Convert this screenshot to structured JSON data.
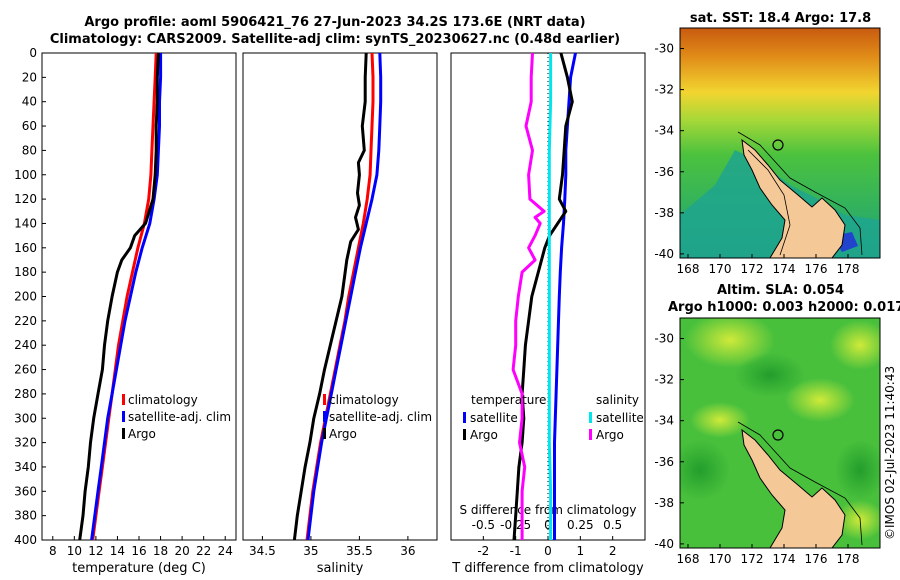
{
  "header": {
    "title_line1": "Argo profile: aoml 5906421_76 27-Jun-2023 34.2S 173.6E (NRT data)",
    "title_line2": "Climatology: CARS2009. Satellite-adj clim: synTS_20230627.nc (0.48d earlier)"
  },
  "maps": {
    "sst_title": "sat. SST: 18.4 Argo: 17.8",
    "sla_title_line1": "Altim. SLA: 0.054",
    "sla_title_line2": "Argo h1000: 0.003 h2000: 0.017",
    "lon_ticks": [
      "168",
      "170",
      "172",
      "174",
      "176",
      "178"
    ],
    "lat_ticks": [
      "-30",
      "-32",
      "-34",
      "-36",
      "-38",
      "-40"
    ],
    "argo_position": {
      "lon": 173.6,
      "lat": -34.2
    }
  },
  "credit": "©IMOS 02-Jul-2023 11:40:43",
  "colors": {
    "climatology": "#ff0000",
    "satellite": "#0000ff",
    "argo": "#000000",
    "s_satellite": "#00e5ee",
    "s_argo": "#ff00ff",
    "land": "#f5c898"
  },
  "chart_data": [
    {
      "type": "line",
      "title": "",
      "xlabel": "temperature (deg C)",
      "ylabel": "",
      "xlim": [
        7,
        25
      ],
      "ylim": [
        400,
        0
      ],
      "xticks": [
        8,
        10,
        12,
        14,
        16,
        18,
        20,
        22,
        24
      ],
      "yticks": [
        0,
        20,
        40,
        60,
        80,
        100,
        120,
        140,
        160,
        180,
        200,
        220,
        240,
        260,
        280,
        300,
        320,
        340,
        360,
        380,
        400
      ],
      "legend": [
        "climatology",
        "satellite-adj. clim",
        "Argo"
      ],
      "series": [
        {
          "name": "climatology",
          "color": "#ff0000",
          "depth": [
            0,
            20,
            40,
            60,
            80,
            100,
            120,
            140,
            160,
            180,
            200,
            220,
            240,
            260,
            280,
            300,
            320,
            340,
            360,
            380,
            400
          ],
          "values": [
            17.6,
            17.5,
            17.4,
            17.3,
            17.2,
            17.1,
            16.9,
            16.5,
            15.9,
            15.4,
            14.9,
            14.5,
            14.1,
            13.8,
            13.5,
            13.2,
            12.9,
            12.6,
            12.3,
            12.0,
            11.7
          ]
        },
        {
          "name": "satellite-adj. clim",
          "color": "#0000ff",
          "depth": [
            0,
            20,
            40,
            60,
            80,
            100,
            120,
            140,
            160,
            180,
            200,
            220,
            240,
            260,
            280,
            300,
            320,
            340,
            360,
            380,
            400
          ],
          "values": [
            18.0,
            18.0,
            17.9,
            17.9,
            17.8,
            17.7,
            17.4,
            17.0,
            16.3,
            15.7,
            15.2,
            14.7,
            14.3,
            13.9,
            13.5,
            13.1,
            12.8,
            12.5,
            12.2,
            11.9,
            11.6
          ]
        },
        {
          "name": "Argo",
          "color": "#000000",
          "depth": [
            0,
            20,
            40,
            60,
            80,
            100,
            120,
            140,
            150,
            160,
            170,
            180,
            200,
            220,
            240,
            260,
            280,
            300,
            320,
            340,
            360,
            380,
            400
          ],
          "values": [
            17.8,
            17.7,
            17.7,
            17.6,
            17.6,
            17.5,
            17.3,
            16.6,
            15.6,
            15.2,
            14.4,
            14.0,
            13.5,
            13.1,
            12.8,
            12.6,
            12.2,
            11.8,
            11.5,
            11.3,
            11.0,
            10.8,
            10.5
          ]
        }
      ]
    },
    {
      "type": "line",
      "title": "",
      "xlabel": "salinity",
      "ylabel": "",
      "xlim": [
        34.3,
        36.3
      ],
      "ylim": [
        400,
        0
      ],
      "xticks": [
        34.5,
        35,
        35.5,
        36
      ],
      "xticklabels": [
        "34.5",
        "35",
        "35.5",
        "36"
      ],
      "legend": [
        "climatology",
        "satellite-adj. clim",
        "Argo"
      ],
      "series": [
        {
          "name": "climatology",
          "color": "#ff0000",
          "depth": [
            0,
            20,
            40,
            60,
            80,
            100,
            120,
            140,
            160,
            180,
            200,
            220,
            240,
            260,
            280,
            300,
            320,
            340,
            360,
            380,
            400
          ],
          "values": [
            35.63,
            35.64,
            35.64,
            35.63,
            35.62,
            35.61,
            35.58,
            35.54,
            35.49,
            35.44,
            35.39,
            35.35,
            35.3,
            35.25,
            35.2,
            35.15,
            35.1,
            35.06,
            35.02,
            34.99,
            34.96
          ]
        },
        {
          "name": "satellite-adj. clim",
          "color": "#0000ff",
          "depth": [
            0,
            20,
            40,
            60,
            80,
            100,
            120,
            140,
            160,
            180,
            200,
            220,
            240,
            260,
            280,
            300,
            320,
            340,
            360,
            380,
            400
          ],
          "values": [
            35.71,
            35.72,
            35.72,
            35.71,
            35.7,
            35.68,
            35.63,
            35.57,
            35.51,
            35.46,
            35.41,
            35.36,
            35.31,
            35.26,
            35.21,
            35.16,
            35.11,
            35.07,
            35.03,
            35.0,
            34.97
          ]
        },
        {
          "name": "Argo",
          "color": "#000000",
          "depth": [
            0,
            20,
            40,
            60,
            80,
            90,
            100,
            115,
            125,
            135,
            145,
            155,
            170,
            200,
            220,
            240,
            260,
            280,
            300,
            320,
            340,
            360,
            380,
            400
          ],
          "values": [
            35.57,
            35.56,
            35.56,
            35.53,
            35.55,
            35.49,
            35.5,
            35.48,
            35.5,
            35.46,
            35.49,
            35.41,
            35.37,
            35.32,
            35.26,
            35.2,
            35.14,
            35.09,
            35.03,
            34.99,
            34.94,
            34.9,
            34.86,
            34.83
          ]
        }
      ]
    },
    {
      "type": "line",
      "title": "",
      "xlabel": "T difference from climatology",
      "ylabel": "",
      "xlim": [
        -3,
        3
      ],
      "ylim": [
        400,
        0
      ],
      "xticks": [
        -2,
        -1,
        0,
        1,
        2
      ],
      "secondary_axis": {
        "label": "S difference from climatology",
        "xlim": [
          -0.75,
          0.75
        ],
        "ticks": [
          -0.5,
          -0.25,
          0,
          0.25,
          0.5
        ],
        "ticklabels": [
          "-0.5",
          "-0.25",
          "0",
          "0.25",
          "0.5"
        ]
      },
      "legend_temperature": {
        "title": "temperature",
        "items": [
          "satellite",
          "Argo"
        ]
      },
      "legend_salinity": {
        "title": "salinity",
        "items": [
          "satellite",
          "Argo"
        ]
      },
      "series": [
        {
          "name": "T satellite",
          "axis": "T",
          "color": "#0000ff",
          "depth": [
            0,
            20,
            40,
            60,
            80,
            100,
            120,
            140,
            160,
            180,
            200,
            240,
            280,
            320,
            360,
            400
          ],
          "values": [
            0.85,
            0.7,
            0.65,
            0.6,
            0.55,
            0.55,
            0.52,
            0.48,
            0.42,
            0.38,
            0.35,
            0.3,
            0.25,
            0.2,
            0.2,
            0.2
          ]
        },
        {
          "name": "T Argo",
          "axis": "T",
          "color": "#000000",
          "depth": [
            0,
            20,
            40,
            60,
            80,
            100,
            120,
            130,
            140,
            150,
            160,
            180,
            200,
            220,
            240,
            260,
            280,
            300,
            320,
            340,
            360,
            380,
            400
          ],
          "values": [
            0.4,
            0.6,
            0.75,
            0.55,
            0.5,
            0.45,
            0.35,
            0.55,
            0.3,
            0.05,
            -0.1,
            -0.3,
            -0.5,
            -0.6,
            -0.7,
            -0.75,
            -0.8,
            -0.75,
            -0.8,
            -0.9,
            -0.95,
            -1.0,
            -1.05
          ]
        },
        {
          "name": "S satellite",
          "axis": "S",
          "color": "#00e5ee",
          "depth": [
            0,
            40,
            80,
            120,
            160,
            200,
            240,
            280,
            320,
            360,
            400
          ],
          "values": [
            0.02,
            0.02,
            0.01,
            0.01,
            0.01,
            0.01,
            0.01,
            0.01,
            0.01,
            0.02,
            0.02
          ]
        },
        {
          "name": "S Argo",
          "axis": "S",
          "color": "#ff00ff",
          "depth": [
            0,
            20,
            40,
            60,
            80,
            100,
            120,
            130,
            135,
            140,
            150,
            160,
            170,
            180,
            200,
            220,
            240,
            260,
            280,
            300,
            320,
            340,
            360,
            380,
            400
          ],
          "values": [
            -0.12,
            -0.13,
            -0.13,
            -0.17,
            -0.12,
            -0.15,
            -0.14,
            -0.03,
            -0.1,
            -0.06,
            -0.1,
            -0.15,
            -0.1,
            -0.2,
            -0.23,
            -0.25,
            -0.25,
            -0.27,
            -0.2,
            -0.2,
            -0.22,
            -0.18,
            -0.2,
            -0.2,
            -0.2
          ]
        }
      ]
    }
  ]
}
